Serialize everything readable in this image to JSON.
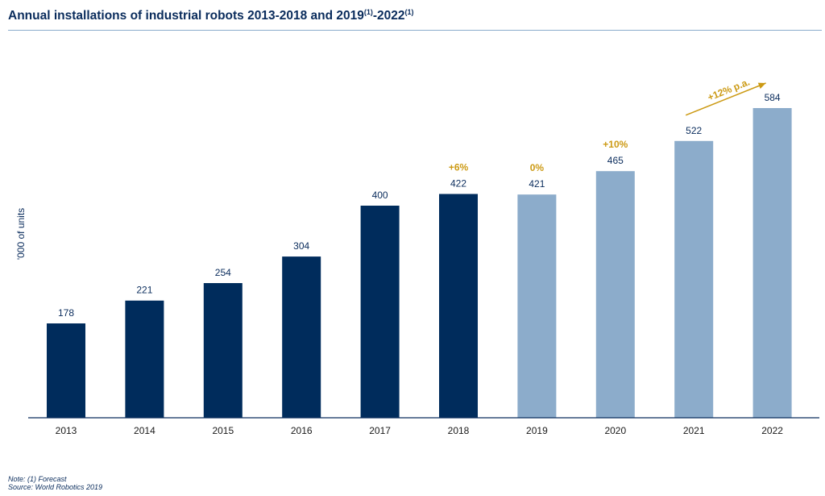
{
  "title": {
    "main": "Annual installations of industrial robots 2013-2018 and 2019",
    "sup1": "(1)",
    "mid": "-2022",
    "sup2": "(1)"
  },
  "footnotes": {
    "note": "Note: (1) Forecast",
    "source": "Source: World Robotics 2019"
  },
  "colors": {
    "actual": "#002c5c",
    "forecast": "#8caccb",
    "growth": "#cc9a14",
    "text": "#0a2c5c"
  },
  "chart_data": {
    "type": "bar",
    "ylabel": "'000 of units",
    "ylim": [
      0,
      700
    ],
    "grid": false,
    "categories": [
      "2013",
      "2014",
      "2015",
      "2016",
      "2017",
      "2018",
      "2019",
      "2020",
      "2021",
      "2022"
    ],
    "values": [
      178,
      221,
      254,
      304,
      400,
      422,
      421,
      465,
      522,
      584
    ],
    "data_labels": [
      "178",
      "221",
      "254",
      "304",
      "400",
      "422",
      "421",
      "465",
      "522",
      "584"
    ],
    "forecast": [
      false,
      false,
      false,
      false,
      false,
      false,
      true,
      true,
      true,
      true
    ],
    "annotations": [
      {
        "category": "2018",
        "text": "+6%"
      },
      {
        "category": "2019",
        "text": "0%"
      },
      {
        "category": "2020",
        "text": "+10%"
      },
      {
        "text": "+12% p.a.",
        "from": "2021",
        "to": "2022",
        "arrow": true
      }
    ]
  }
}
